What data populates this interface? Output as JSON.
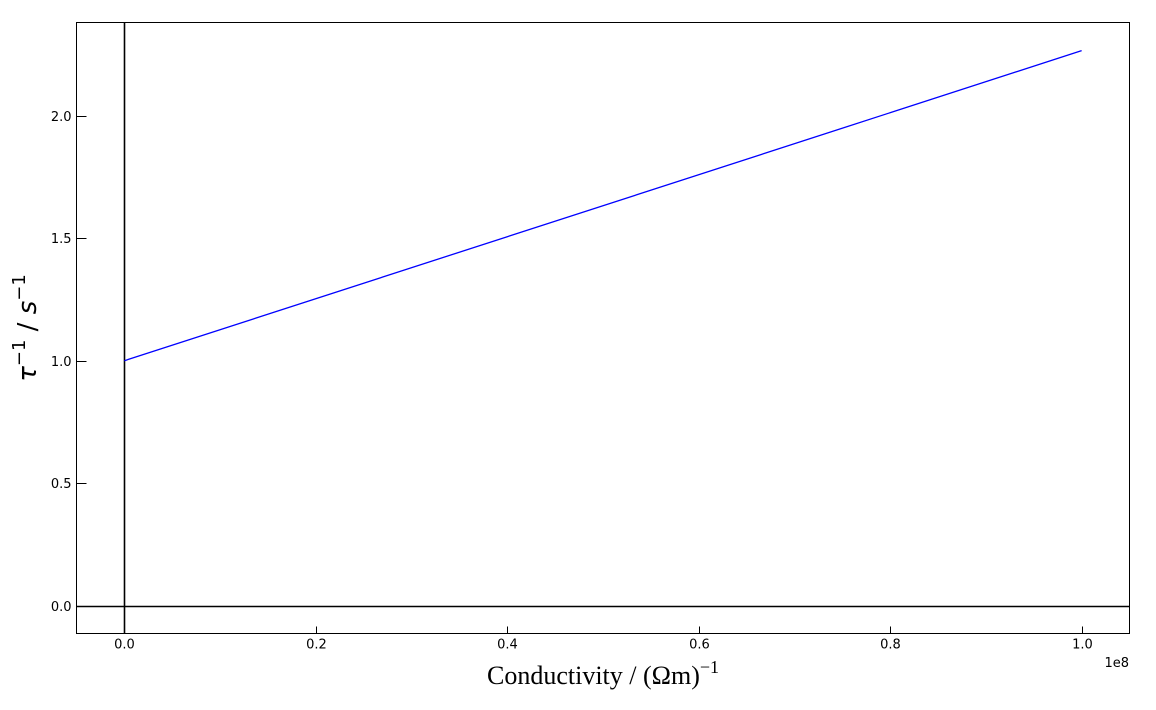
{
  "chart_data": {
    "type": "line",
    "title": "",
    "xlabel": "Conductivity / (Ωm)",
    "xlabel_superscript": "−1",
    "ylabel_base": "τ",
    "ylabel_sup1": "−1",
    "ylabel_mid": " / ",
    "ylabel_unit": "s",
    "ylabel_sup2": "−1",
    "x_offset_label": "1e8",
    "xlim": [
      -0.05,
      1.05
    ],
    "ylim": [
      -0.113,
      2.38
    ],
    "x_ticks": [
      0.0,
      0.2,
      0.4,
      0.6,
      0.8,
      1.0
    ],
    "x_tick_labels": [
      "0.0",
      "0.2",
      "0.4",
      "0.6",
      "0.8",
      "1.0"
    ],
    "y_ticks": [
      0.0,
      0.5,
      1.0,
      1.5,
      2.0
    ],
    "y_tick_labels": [
      "0.0",
      "0.5",
      "1.0",
      "1.5",
      "2.0"
    ],
    "grid": false,
    "reference_lines": {
      "x": 0.0,
      "y": 0.0
    },
    "series": [
      {
        "color": "#0000ff",
        "x": [
          0.0,
          1.0
        ],
        "y": [
          1.0,
          2.265
        ]
      }
    ]
  }
}
